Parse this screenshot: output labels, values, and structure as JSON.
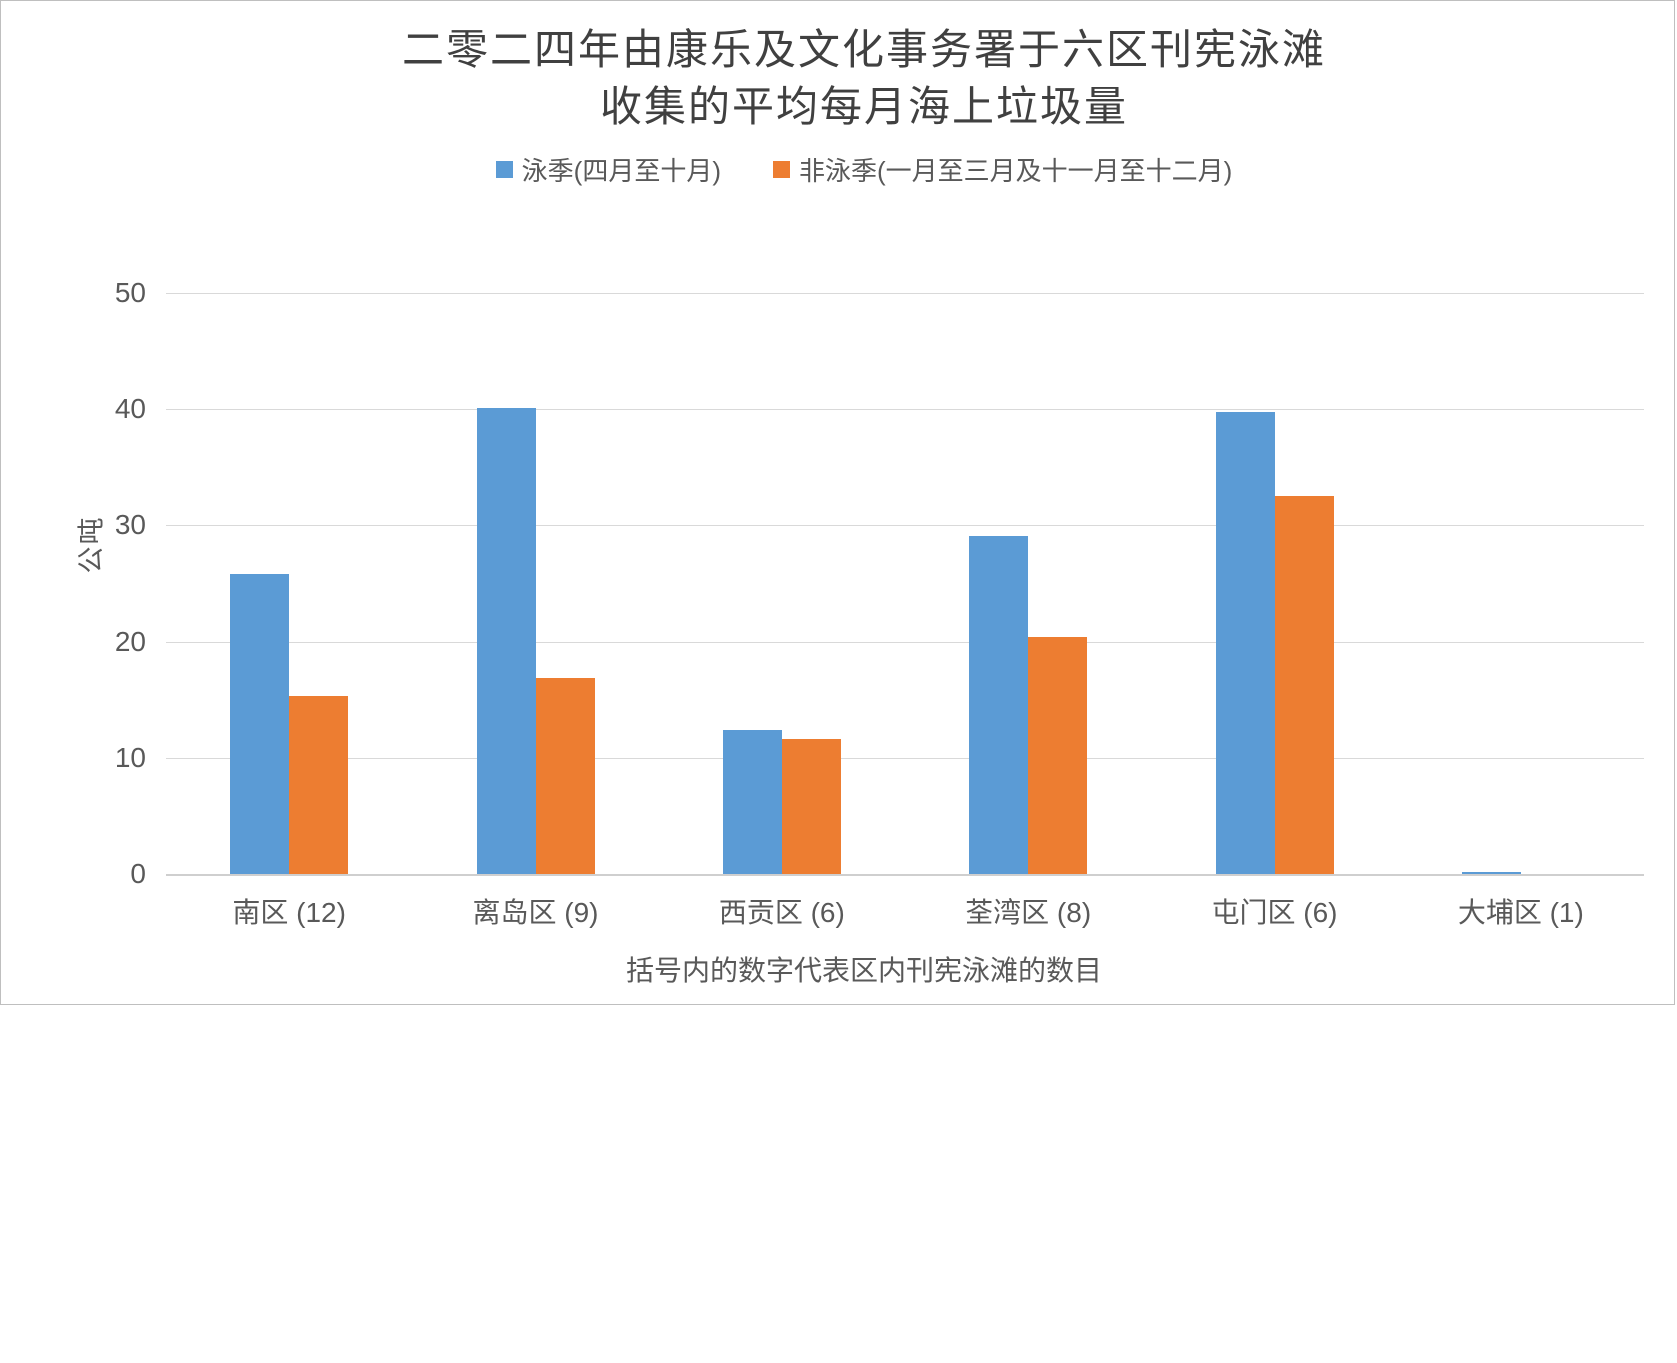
{
  "chart": {
    "title_line1": "二零二四年由康乐及文化事务署于六区刊宪泳滩",
    "title_line2": "收集的平均每月海上垃圾量"
  },
  "chart_data": {
    "type": "bar",
    "title": "二零二四年由康乐及文化事务署于六区刊宪泳滩收集的平均每月海上垃圾量",
    "categories": [
      "南区 (12)",
      "离岛区 (9)",
      "西贡区 (6)",
      "荃湾区 (8)",
      "屯门区 (6)",
      "大埔区 (1)"
    ],
    "series": [
      {
        "name": "泳季(四月至十月)",
        "color": "#5B9BD5",
        "values": [
          25.8,
          40.1,
          12.4,
          29.1,
          39.8,
          0.2
        ]
      },
      {
        "name": "非泳季(一月至三月及十一月至十二月)",
        "color": "#ED7D31",
        "values": [
          15.3,
          16.9,
          11.6,
          20.4,
          32.5,
          0
        ]
      }
    ],
    "ylabel": "公吨",
    "footnote": "括号内的数字代表区内刊宪泳滩的数目",
    "ylim": [
      0,
      50
    ],
    "yticks": [
      0,
      10,
      20,
      30,
      40,
      50
    ],
    "grid": true,
    "legend_position": "top",
    "gridline_color": "#d9d9d9",
    "axis_line_color": "#cfcfcf",
    "text_color": "#595959",
    "title_color": "#404040",
    "frame_border_color": "#bfbfbf"
  }
}
